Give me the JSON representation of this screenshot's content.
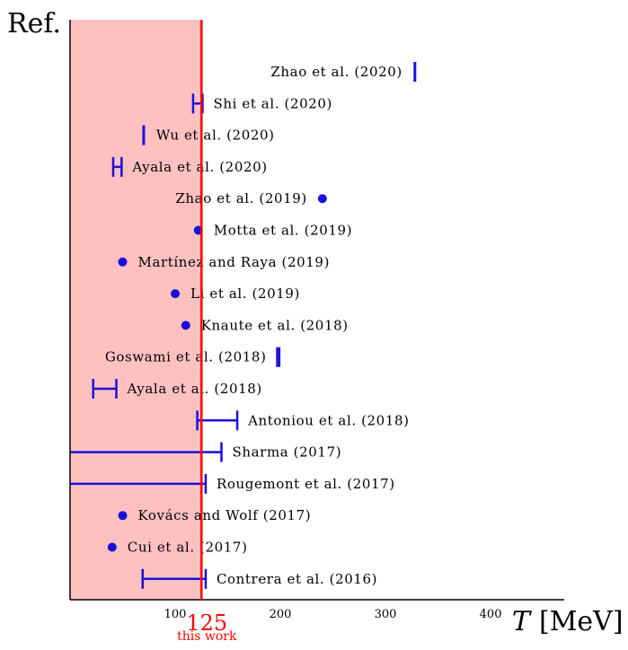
{
  "chart_data": {
    "type": "scatter",
    "title": "",
    "ylabel": "Ref.",
    "xlabel_symbol": "T",
    "xlabel_unit": "[MeV]",
    "xlim": [
      0,
      470
    ],
    "xticks": [
      {
        "value": 100,
        "label": "100"
      },
      {
        "value": 200,
        "label": "200"
      },
      {
        "value": 300,
        "label": "300"
      },
      {
        "value": 400,
        "label": "400"
      }
    ],
    "reference": {
      "value": 125,
      "label": "125",
      "sublabel": "this work",
      "band": [
        0,
        125
      ],
      "line_color": "#ff0000",
      "band_color": "#ffc0c0"
    },
    "marker_color": "#1a10d8",
    "entries": [
      {
        "label": "Zhao et al. (2020)",
        "kind": "point",
        "x": 328,
        "marker": "bar",
        "label_side": "left"
      },
      {
        "label": "Shi et al. (2020)",
        "kind": "range",
        "xmin": 117,
        "xmax": 126,
        "label_side": "right"
      },
      {
        "label": "Wu et al. (2020)",
        "kind": "point",
        "x": 70,
        "marker": "bar",
        "label_side": "right"
      },
      {
        "label": "Ayala et al. (2020)",
        "kind": "range",
        "xmin": 41,
        "xmax": 49,
        "label_side": "right"
      },
      {
        "label": "Zhao et al. (2019)",
        "kind": "point",
        "x": 240,
        "marker": "dot",
        "label_side": "left"
      },
      {
        "label": "Motta et al. (2019)",
        "kind": "point",
        "x": 122,
        "marker": "dot",
        "label_side": "right"
      },
      {
        "label": "Martínez and Raya (2019)",
        "kind": "point",
        "x": 50,
        "marker": "dot",
        "label_side": "right"
      },
      {
        "label": "Li et al. (2019)",
        "kind": "point",
        "x": 100,
        "marker": "dot",
        "label_side": "right"
      },
      {
        "label": "Knaute et al. (2018)",
        "kind": "point",
        "x": 110,
        "marker": "dot",
        "label_side": "right"
      },
      {
        "label": "Goswami et al. (2018)",
        "kind": "range",
        "xmin": 197,
        "xmax": 199,
        "label_side": "left"
      },
      {
        "label": "Ayala et al. (2018)",
        "kind": "range",
        "xmin": 22,
        "xmax": 44,
        "label_side": "right"
      },
      {
        "label": "Antoniou et al. (2018)",
        "kind": "range",
        "xmin": 121,
        "xmax": 159,
        "label_side": "right"
      },
      {
        "label": "Sharma (2017)",
        "kind": "range",
        "xmin": 0,
        "xmax": 144,
        "label_side": "right"
      },
      {
        "label": "Rougemont et al. (2017)",
        "kind": "range",
        "xmin": 0,
        "xmax": 129,
        "label_side": "right"
      },
      {
        "label": "Kovács and Wolf (2017)",
        "kind": "point",
        "x": 50,
        "marker": "dot",
        "label_side": "right"
      },
      {
        "label": "Cui et al. (2017)",
        "kind": "point",
        "x": 40,
        "marker": "dot",
        "label_side": "right"
      },
      {
        "label": "Contrera et al. (2016)",
        "kind": "range",
        "xmin": 69,
        "xmax": 129,
        "label_side": "right"
      }
    ]
  }
}
